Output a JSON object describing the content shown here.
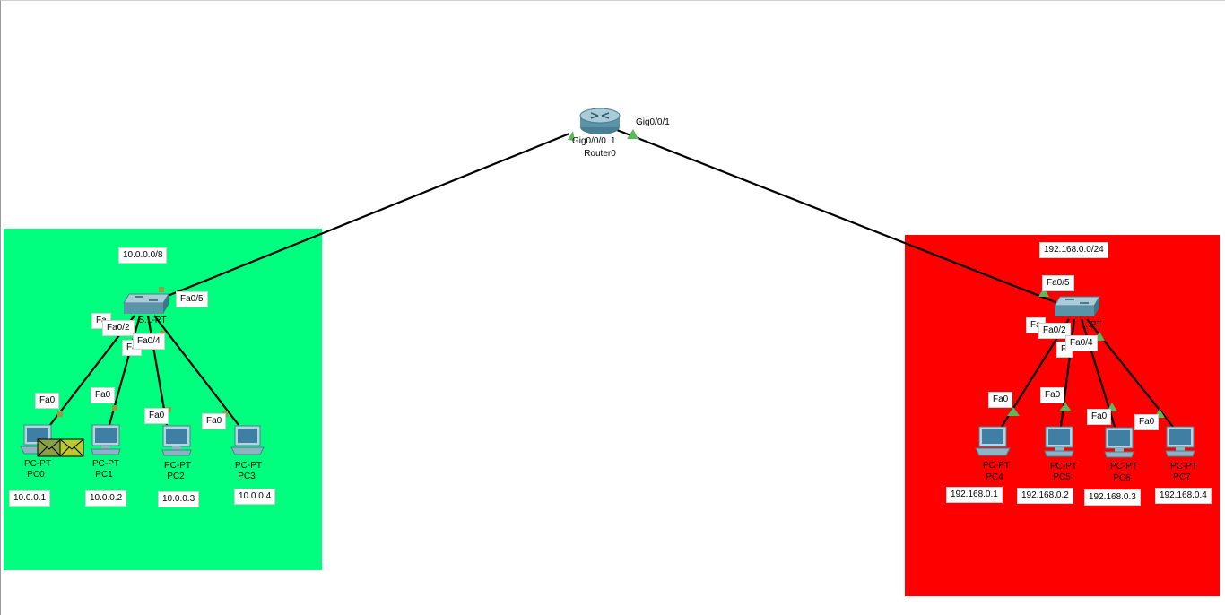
{
  "colors": {
    "left_zone": "#00ff7f",
    "right_zone": "#ff0000",
    "link": "#000000",
    "port_up": "#5cb85c"
  },
  "router": {
    "model": "",
    "name": "Router0",
    "port_left": "Gig0/0/0",
    "port_right": "Gig0/0/1",
    "port_overlap": "1"
  },
  "left": {
    "network": "10.0.0.0/8",
    "switch": {
      "name_fragment": "S...-PT",
      "uplink_port": "Fa0/5",
      "p1": "Fa",
      "p2": "Fa0/2",
      "p3": "Fa",
      "p4": "Fa0/4"
    },
    "pcs": [
      {
        "model": "PC-PT",
        "name": "PC0",
        "port": "Fa0",
        "ip": "10.0.0.1",
        "icon": "laptop-icon"
      },
      {
        "model": "PC-PT",
        "name": "PC1",
        "port": "Fa0",
        "ip": "10.0.0.2",
        "icon": "pc-icon"
      },
      {
        "model": "PC-PT",
        "name": "PC2",
        "port": "Fa0",
        "ip": "10.0.0.3",
        "icon": "pc-icon"
      },
      {
        "model": "PC-PT",
        "name": "PC3",
        "port": "Fa0",
        "ip": "10.0.0.4",
        "icon": "laptop-icon"
      }
    ],
    "pdu": "envelope-icon"
  },
  "right": {
    "network": "192.168.0.0/24",
    "switch": {
      "name_fragment": "...PT",
      "uplink_port": "Fa0/5",
      "p1": "Fa",
      "p2": "Fa0/2",
      "p3": "Fi",
      "p4": "Fa0/4"
    },
    "pcs": [
      {
        "model": "PC-PT",
        "name": "PC4",
        "port": "Fa0",
        "ip": "192.168.0.1",
        "icon": "laptop-icon"
      },
      {
        "model": "PC-PT",
        "name": "PC5",
        "port": "Fa0",
        "ip": "192.168.0.2",
        "icon": "pc-icon"
      },
      {
        "model": "PC-PT",
        "name": "PC6",
        "port": "Fa0",
        "ip": "192.168.0.3",
        "icon": "pc-icon"
      },
      {
        "model": "PC-PT",
        "name": "PC7",
        "port": "Fa0",
        "ip": "192.168.0.4",
        "icon": "pc-icon"
      }
    ]
  }
}
